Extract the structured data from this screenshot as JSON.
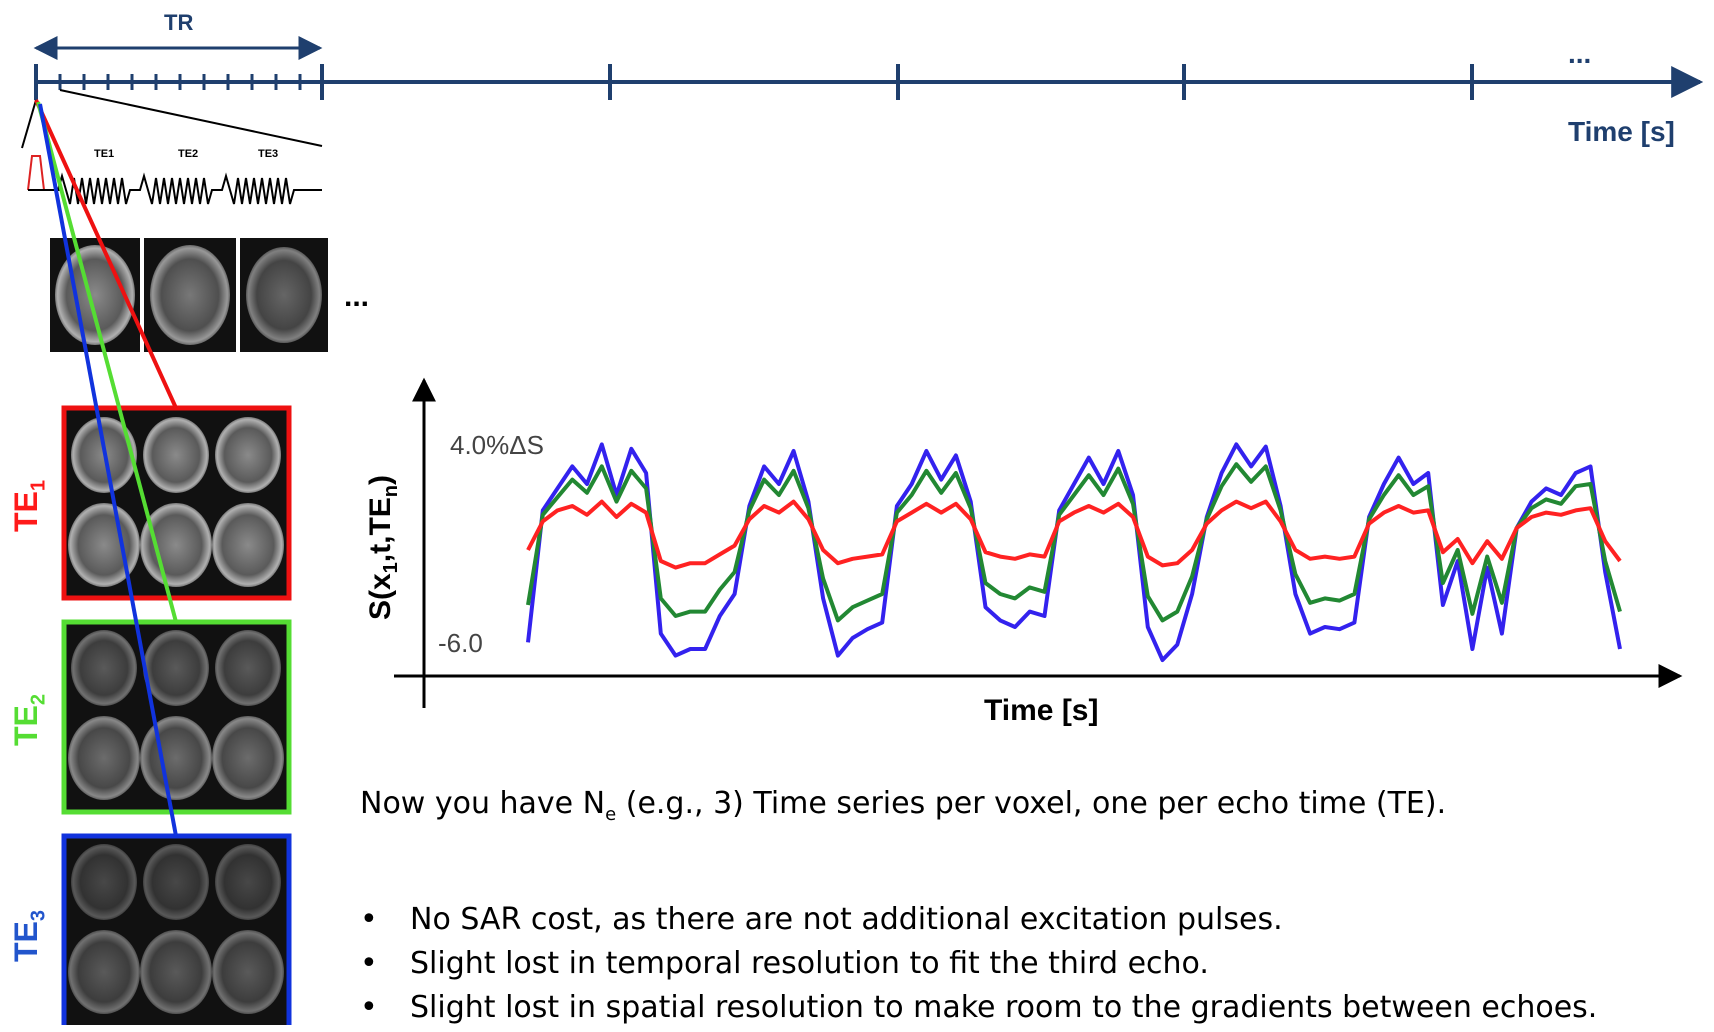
{
  "timeline": {
    "tr_label": "TR",
    "time_label": "Time [s]",
    "ellipsis": "..."
  },
  "sequence": {
    "te1": "TE1",
    "te2": "TE2",
    "te3": "TE3"
  },
  "images": {
    "ellipsis": "...",
    "te_labels": [
      {
        "base": "TE",
        "sub": "1",
        "color": "#ff1a1a"
      },
      {
        "base": "TE",
        "sub": "2",
        "color": "#55dd33"
      },
      {
        "base": "TE",
        "sub": "3",
        "color": "#2255cc"
      }
    ]
  },
  "chart_data": {
    "type": "line",
    "ylabel_base": "S(x",
    "ylabel_sub1": "1",
    "ylabel_mid": ",t,TE",
    "ylabel_sub2": "n",
    "ylabel_end": ")",
    "xlabel": "Time [s]",
    "y_top_label": "4.0%ΔS",
    "y_bottom_label": "-6.0",
    "ylim": [
      -6.0,
      4.0
    ],
    "series": [
      {
        "color": "#3322ee",
        "values": [
          -5.2,
          0.8,
          1.8,
          2.8,
          2.0,
          3.8,
          1.5,
          3.6,
          2.5,
          -4.8,
          -5.8,
          -5.5,
          -5.5,
          -4.0,
          -3.0,
          1.0,
          2.8,
          2.0,
          3.5,
          1.2,
          -3.2,
          -5.8,
          -5.0,
          -4.6,
          -4.3,
          1.0,
          2.0,
          3.5,
          2.2,
          3.3,
          1.2,
          -3.6,
          -4.2,
          -4.5,
          -3.8,
          -4.0,
          0.8,
          2.0,
          3.2,
          2.0,
          3.5,
          1.5,
          -4.5,
          -6.0,
          -5.3,
          -3.0,
          0.5,
          2.5,
          3.8,
          2.8,
          3.7,
          1.0,
          -3.0,
          -4.8,
          -4.5,
          -4.6,
          -4.3,
          0.5,
          2.0,
          3.2,
          2.0,
          2.5,
          -3.5,
          -1.5,
          -5.5,
          -1.8,
          -4.8,
          0.0,
          1.2,
          1.8,
          1.5,
          2.5,
          2.8,
          -2.0,
          -5.5
        ]
      },
      {
        "color": "#228833",
        "values": [
          -3.5,
          0.6,
          1.4,
          2.2,
          1.6,
          2.8,
          1.2,
          2.6,
          1.8,
          -3.2,
          -4.0,
          -3.8,
          -3.8,
          -2.8,
          -2.0,
          0.8,
          2.2,
          1.5,
          2.6,
          0.9,
          -2.3,
          -4.2,
          -3.6,
          -3.3,
          -3.0,
          0.7,
          1.5,
          2.6,
          1.6,
          2.5,
          0.9,
          -2.5,
          -3.0,
          -3.2,
          -2.7,
          -2.9,
          0.6,
          1.5,
          2.4,
          1.5,
          2.7,
          1.1,
          -3.1,
          -4.2,
          -3.8,
          -2.2,
          0.4,
          1.9,
          2.9,
          2.1,
          2.8,
          0.8,
          -2.1,
          -3.4,
          -3.2,
          -3.3,
          -3.0,
          0.4,
          1.5,
          2.4,
          1.5,
          1.9,
          -2.5,
          -1.0,
          -3.9,
          -1.3,
          -3.4,
          0.0,
          0.9,
          1.3,
          1.1,
          1.9,
          2.0,
          -1.5,
          -3.8
        ]
      },
      {
        "color": "#ff2222",
        "values": [
          -1.0,
          0.3,
          0.8,
          1.0,
          0.6,
          1.2,
          0.5,
          1.1,
          0.7,
          -1.5,
          -1.8,
          -1.6,
          -1.6,
          -1.2,
          -0.8,
          0.4,
          1.0,
          0.7,
          1.2,
          0.4,
          -1.0,
          -1.6,
          -1.4,
          -1.3,
          -1.2,
          0.3,
          0.7,
          1.1,
          0.7,
          1.1,
          0.4,
          -1.1,
          -1.3,
          -1.4,
          -1.2,
          -1.3,
          0.3,
          0.7,
          1.0,
          0.7,
          1.1,
          0.5,
          -1.3,
          -1.7,
          -1.6,
          -1.0,
          0.2,
          0.8,
          1.2,
          0.9,
          1.2,
          0.3,
          -1.0,
          -1.4,
          -1.3,
          -1.4,
          -1.3,
          0.2,
          0.7,
          1.0,
          0.7,
          0.8,
          -1.1,
          -0.5,
          -1.6,
          -0.6,
          -1.4,
          0.0,
          0.5,
          0.7,
          0.6,
          0.8,
          0.9,
          -0.6,
          -1.5
        ]
      }
    ]
  },
  "body": {
    "intro_pre": "Now you have N",
    "intro_sub": "e",
    "intro_post": " (e.g., 3) Time series per voxel, one per echo time (TE).",
    "bullets": [
      "No SAR cost, as there are not additional excitation pulses.",
      "Slight lost in temporal resolution to fit the third echo.",
      "Slight lost in spatial resolution to make room to the gradients between echoes."
    ]
  }
}
